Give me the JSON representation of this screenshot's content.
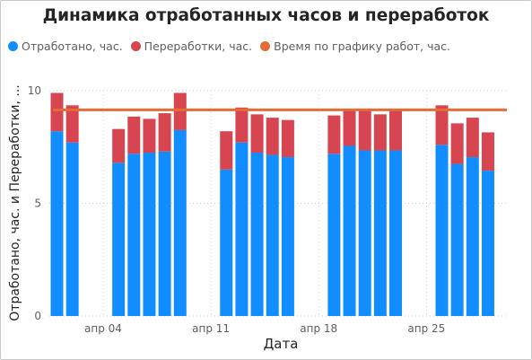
{
  "chart_data": {
    "type": "bar",
    "stacked": true,
    "title": "Динамика отработанных часов и переработок",
    "xlabel": "Дата",
    "ylabel": "Отработано, час. и Переработки, ...",
    "ylim": [
      0,
      10
    ],
    "yticks": [
      "0",
      "5",
      "10"
    ],
    "xticks": [
      {
        "label": "апр 04",
        "day": 4
      },
      {
        "label": "апр 11",
        "day": 11
      },
      {
        "label": "апр 18",
        "day": 18
      },
      {
        "label": "апр 25",
        "day": 25
      }
    ],
    "grid": true,
    "legend_position": "top-left",
    "x": [
      1,
      2,
      5,
      6,
      7,
      8,
      9,
      12,
      13,
      14,
      15,
      16,
      19,
      20,
      21,
      22,
      23,
      26,
      27,
      28,
      29
    ],
    "series": [
      {
        "name": "Отработано, час.",
        "color": "#118DFF",
        "values": [
          8.2,
          7.7,
          6.8,
          7.2,
          7.25,
          7.3,
          8.25,
          6.5,
          7.7,
          7.25,
          7.15,
          7.05,
          7.2,
          7.55,
          7.35,
          7.35,
          7.35,
          7.6,
          6.75,
          7.05,
          6.45
        ]
      },
      {
        "name": "Переработки, час.",
        "color": "#D64550",
        "values": [
          1.7,
          1.65,
          1.5,
          1.65,
          1.5,
          1.7,
          1.65,
          1.7,
          1.55,
          1.7,
          1.65,
          1.65,
          1.7,
          1.6,
          1.8,
          1.6,
          1.8,
          1.75,
          1.8,
          1.75,
          1.7
        ]
      },
      {
        "name": "Время по графику работ, час.",
        "color": "#E66C37",
        "type": "line",
        "value": 9.15
      }
    ]
  }
}
